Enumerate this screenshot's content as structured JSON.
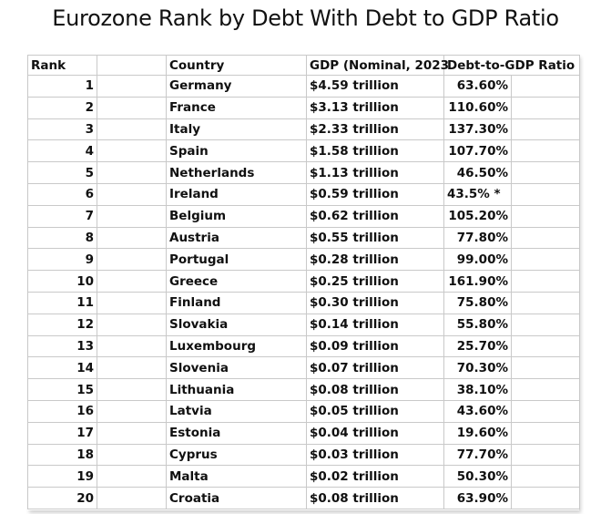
{
  "title": "Eurozone Rank by Debt With Debt to GDP Ratio",
  "headers": {
    "rank": "Rank",
    "country": "Country",
    "gdp": "GDP (Nominal, 2023",
    "ratio": "Debt-to-GDP Ratio"
  },
  "rows": [
    {
      "rank": "1",
      "country": "Germany",
      "gdp": "$4.59 trillion",
      "ratio": "63.60%"
    },
    {
      "rank": "2",
      "country": "France",
      "gdp": "$3.13 trillion",
      "ratio": "110.60%"
    },
    {
      "rank": "3",
      "country": "Italy",
      "gdp": "$2.33 trillion",
      "ratio": "137.30%"
    },
    {
      "rank": "4",
      "country": "Spain",
      "gdp": "$1.58 trillion",
      "ratio": "107.70%"
    },
    {
      "rank": "5",
      "country": "Netherlands",
      "gdp": "$1.13 trillion",
      "ratio": "46.50%"
    },
    {
      "rank": "6",
      "country": "Ireland",
      "gdp": "$0.59 trillion",
      "ratio": "43.5% *"
    },
    {
      "rank": "7",
      "country": "Belgium",
      "gdp": "$0.62 trillion",
      "ratio": "105.20%"
    },
    {
      "rank": "8",
      "country": "Austria",
      "gdp": "$0.55 trillion",
      "ratio": "77.80%"
    },
    {
      "rank": "9",
      "country": "Portugal",
      "gdp": "$0.28 trillion",
      "ratio": "99.00%"
    },
    {
      "rank": "10",
      "country": "Greece",
      "gdp": "$0.25 trillion",
      "ratio": "161.90%"
    },
    {
      "rank": "11",
      "country": "Finland",
      "gdp": "$0.30 trillion",
      "ratio": "75.80%"
    },
    {
      "rank": "12",
      "country": "Slovakia",
      "gdp": "$0.14 trillion",
      "ratio": "55.80%"
    },
    {
      "rank": "13",
      "country": "Luxembourg",
      "gdp": "$0.09 trillion",
      "ratio": "25.70%"
    },
    {
      "rank": "14",
      "country": "Slovenia",
      "gdp": "$0.07 trillion",
      "ratio": "70.30%"
    },
    {
      "rank": "15",
      "country": "Lithuania",
      "gdp": "$0.08 trillion",
      "ratio": "38.10%"
    },
    {
      "rank": "16",
      "country": "Latvia",
      "gdp": "$0.05 trillion",
      "ratio": "43.60%"
    },
    {
      "rank": "17",
      "country": "Estonia",
      "gdp": "$0.04 trillion",
      "ratio": "19.60%"
    },
    {
      "rank": "18",
      "country": "Cyprus",
      "gdp": "$0.03 trillion",
      "ratio": "77.70%"
    },
    {
      "rank": "19",
      "country": "Malta",
      "gdp": "$0.02 trillion",
      "ratio": "50.30%"
    },
    {
      "rank": "20",
      "country": "Croatia",
      "gdp": "$0.08 trillion",
      "ratio": "63.90%"
    }
  ]
}
